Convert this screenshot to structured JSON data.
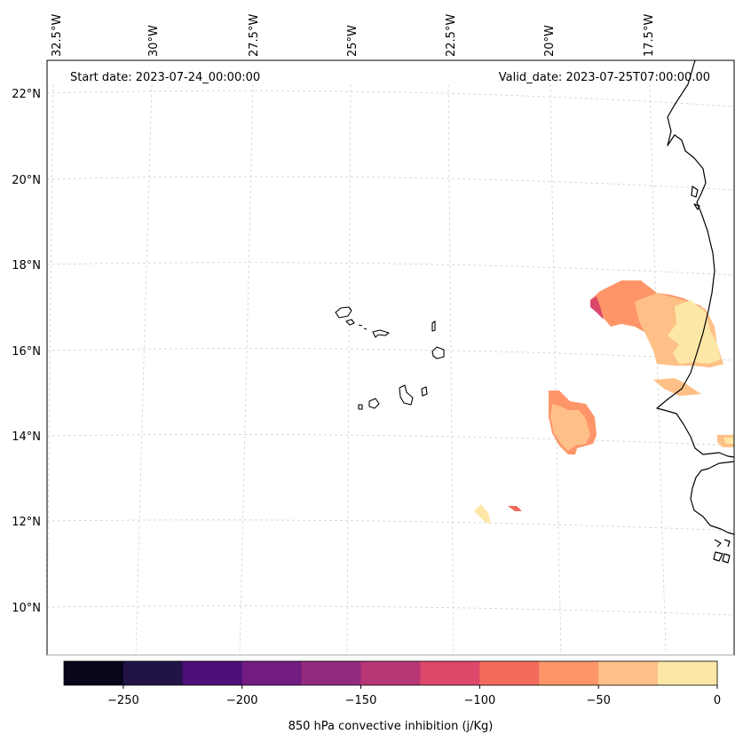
{
  "annotations": {
    "start_date": "Start date: 2023-07-24_00:00:00",
    "valid_date": "Valid_date: 2023-07-25T07:00:00.00"
  },
  "axes": {
    "lon_labels": [
      "32.5°W",
      "30°W",
      "27.5°W",
      "25°W",
      "22.5°W",
      "20°W",
      "17.5°W"
    ],
    "lat_labels": [
      "22°N",
      "20°N",
      "18°N",
      "16°N",
      "14°N",
      "12°N",
      "10°N"
    ]
  },
  "colorbar": {
    "label": "850 hPa convective inhibition (j/Kg)",
    "tick_labels": [
      "−250",
      "−200",
      "−150",
      "−100",
      "−50",
      "0"
    ],
    "levels": [
      -275,
      -250,
      -225,
      -200,
      -175,
      -150,
      -125,
      -100,
      -75,
      -50,
      -25,
      0
    ],
    "colors": [
      "#07061b",
      "#211346",
      "#4e0f78",
      "#731c81",
      "#942b80",
      "#b73676",
      "#dc4869",
      "#f26b5b",
      "#fd9569",
      "#fec087",
      "#fde7a6"
    ]
  },
  "chart_data": {
    "type": "heatmap",
    "title": "",
    "variable": "850 hPa convective inhibition",
    "units": "j/Kg",
    "lon_range": [
      -33,
      -15.5
    ],
    "lat_range": [
      9,
      22.5
    ],
    "colorbar_range": [
      -275,
      0
    ],
    "regions": [
      {
        "name": "Senegal/Mauritania coast",
        "min_value": -125,
        "max_value": 0
      },
      {
        "name": "Offshore cell near 20°W 14°N",
        "min_value": -100,
        "max_value": -25
      },
      {
        "name": "Small cells near 21°W 12°N",
        "min_value": -100,
        "max_value": 0
      }
    ]
  }
}
